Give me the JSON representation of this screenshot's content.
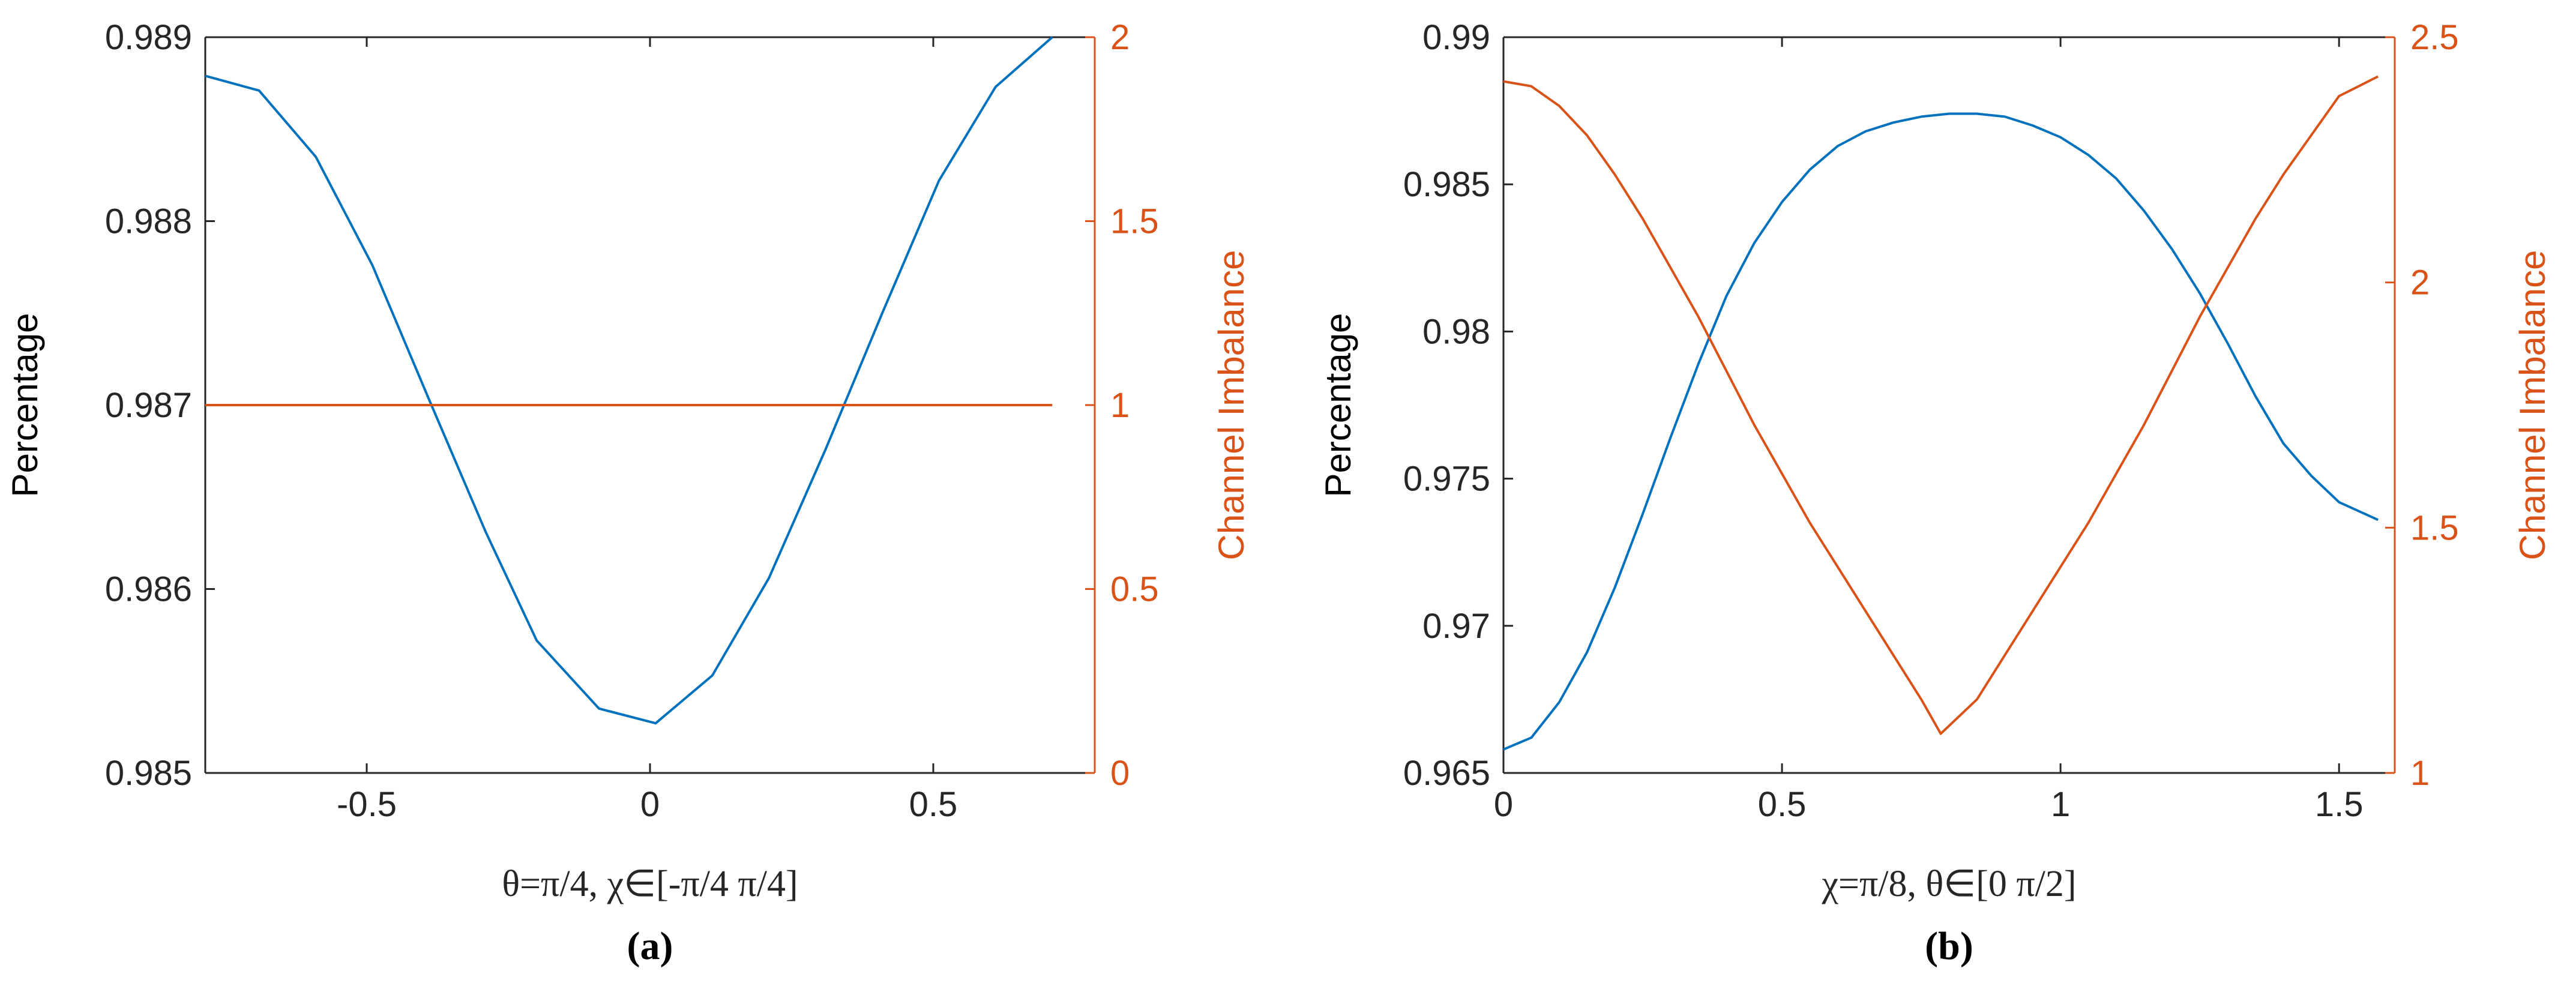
{
  "colors": {
    "left_axis": "#000000",
    "right_axis": "#D95319",
    "blue_series": "#0072BD",
    "orange_series": "#D95319"
  },
  "chart_data": [
    {
      "type": "line",
      "panel_label": "(a)",
      "xlabel": "θ=π/4,  χ∈[-π/4 π/4]",
      "ylabel_left": "Percentage",
      "ylabel_right": "Channel Imbalance",
      "xlim": [
        -0.785,
        0.785
      ],
      "xticks": [
        -0.5,
        0,
        0.5
      ],
      "xtick_labels": [
        "-0.5",
        "0",
        "0.5"
      ],
      "ylim_left": [
        0.985,
        0.989
      ],
      "yticks_left": [
        0.985,
        0.986,
        0.987,
        0.988,
        0.989
      ],
      "ytick_labels_left": [
        "0.985",
        "0.986",
        "0.987",
        "0.988",
        "0.989"
      ],
      "ylim_right": [
        0,
        2
      ],
      "yticks_right": [
        0,
        0.5,
        1,
        1.5,
        2
      ],
      "ytick_labels_right": [
        "0",
        "0.5",
        "1",
        "1.5",
        "2"
      ],
      "grid": false,
      "series": [
        {
          "axis": "left",
          "x": [
            -0.785,
            -0.69,
            -0.59,
            -0.49,
            -0.39,
            -0.29,
            -0.2,
            -0.09,
            0.01,
            0.11,
            0.21,
            0.31,
            0.41,
            0.51,
            0.61,
            0.71
          ],
          "y": [
            0.98879,
            0.98871,
            0.98835,
            0.98776,
            0.98703,
            0.98631,
            0.98572,
            0.98535,
            0.98527,
            0.98553,
            0.98606,
            0.98676,
            0.9875,
            0.98822,
            0.98873,
            0.989
          ]
        },
        {
          "axis": "right",
          "x": [
            -0.785,
            0.71
          ],
          "y": [
            1,
            1
          ]
        }
      ]
    },
    {
      "type": "line",
      "panel_label": "(b)",
      "xlabel": "χ=π/8,  θ∈[0 π/2]",
      "ylabel_left": "Percentage",
      "ylabel_right": "Channel Imbalance",
      "xlim": [
        0,
        1.6
      ],
      "xticks": [
        0,
        0.5,
        1,
        1.5
      ],
      "xtick_labels": [
        "0",
        "0.5",
        "1",
        "1.5"
      ],
      "ylim_left": [
        0.965,
        0.99
      ],
      "yticks_left": [
        0.965,
        0.97,
        0.975,
        0.98,
        0.985,
        0.99
      ],
      "ytick_labels_left": [
        "0.965",
        "0.97",
        "0.975",
        "0.98",
        "0.985",
        "0.99"
      ],
      "ylim_right": [
        1,
        2.5
      ],
      "yticks_right": [
        1,
        1.5,
        2,
        2.5
      ],
      "ytick_labels_right": [
        "1",
        "1.5",
        "2",
        "2.5"
      ],
      "grid": false,
      "series": [
        {
          "axis": "left",
          "x": [
            0,
            0.05,
            0.1,
            0.15,
            0.2,
            0.25,
            0.3,
            0.35,
            0.4,
            0.45,
            0.5,
            0.55,
            0.6,
            0.65,
            0.7,
            0.75,
            0.8,
            0.85,
            0.9,
            0.95,
            1.0,
            1.05,
            1.1,
            1.15,
            1.2,
            1.25,
            1.3,
            1.35,
            1.4,
            1.45,
            1.5,
            1.57
          ],
          "y": [
            0.9658,
            0.9662,
            0.9674,
            0.9691,
            0.9713,
            0.9738,
            0.9764,
            0.9789,
            0.9812,
            0.983,
            0.9844,
            0.9855,
            0.9863,
            0.9868,
            0.9871,
            0.9873,
            0.9874,
            0.9874,
            0.9873,
            0.987,
            0.9866,
            0.986,
            0.9852,
            0.9841,
            0.9828,
            0.9813,
            0.9796,
            0.9778,
            0.9762,
            0.9751,
            0.9742,
            0.9736
          ]
        },
        {
          "axis": "right",
          "x": [
            0,
            0.05,
            0.1,
            0.15,
            0.2,
            0.25,
            0.3,
            0.35,
            0.4,
            0.45,
            0.5,
            0.55,
            0.6,
            0.65,
            0.7,
            0.75,
            0.785,
            0.85,
            0.9,
            0.95,
            1.0,
            1.05,
            1.1,
            1.15,
            1.2,
            1.25,
            1.3,
            1.35,
            1.4,
            1.45,
            1.5,
            1.57
          ],
          "y": [
            2.41,
            2.4,
            2.36,
            2.3,
            2.22,
            2.13,
            2.03,
            1.93,
            1.82,
            1.71,
            1.61,
            1.51,
            1.42,
            1.33,
            1.24,
            1.15,
            1.08,
            1.15,
            1.24,
            1.33,
            1.42,
            1.51,
            1.61,
            1.71,
            1.82,
            1.93,
            2.03,
            2.13,
            2.22,
            2.3,
            2.38,
            2.42
          ]
        }
      ]
    }
  ]
}
